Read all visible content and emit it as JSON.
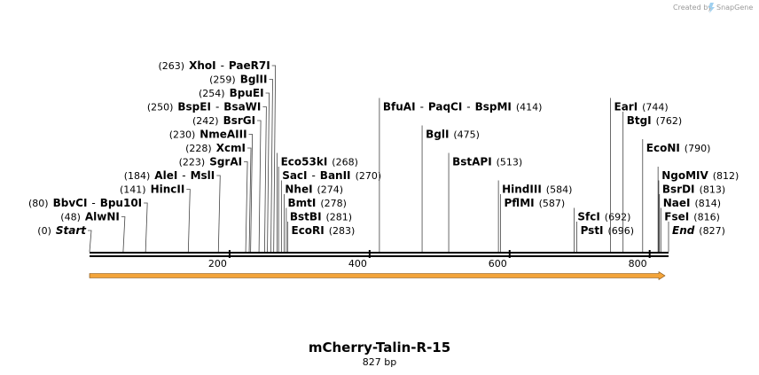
{
  "brand": {
    "created_by": "Created by",
    "name": "SnapGene"
  },
  "construct": {
    "name": "mCherry-Talin-R-15",
    "length_label": "827 bp",
    "length_bp": 827
  },
  "ruler": {
    "ticks": [
      200,
      400,
      600,
      800
    ],
    "tick_labels": [
      "200",
      "400",
      "600",
      "800"
    ]
  },
  "feature": {
    "name": "orange-arrow-feature",
    "color": "#f3a43a",
    "outline": "#7a4a10",
    "start_bp": 0,
    "end_bp": 827
  },
  "colors": {
    "line": "#000000",
    "leader": "#444444"
  },
  "sites": [
    {
      "id": "start",
      "pos": "(0)",
      "bp": 0,
      "side": "right",
      "row": 0,
      "names": [
        "Start"
      ],
      "italic": true
    },
    {
      "id": "alwni",
      "pos": "(48)",
      "bp": 48,
      "side": "right",
      "row": 1,
      "names": [
        "AlwNI"
      ]
    },
    {
      "id": "bbvci",
      "pos": "(80)",
      "bp": 80,
      "side": "right",
      "row": 2,
      "names": [
        "BbvCI",
        "Bpu10I"
      ]
    },
    {
      "id": "hincii",
      "pos": "(141)",
      "bp": 141,
      "side": "right",
      "row": 3,
      "names": [
        "HincII"
      ]
    },
    {
      "id": "alei",
      "pos": "(184)",
      "bp": 184,
      "side": "right",
      "row": 4,
      "names": [
        "AleI",
        "MslI"
      ]
    },
    {
      "id": "sgrai",
      "pos": "(223)",
      "bp": 223,
      "side": "right",
      "row": 5,
      "names": [
        "SgrAI"
      ]
    },
    {
      "id": "xcmi",
      "pos": "(228)",
      "bp": 228,
      "side": "right",
      "row": 6,
      "names": [
        "XcmI"
      ]
    },
    {
      "id": "nmeaiii",
      "pos": "(230)",
      "bp": 230,
      "side": "right",
      "row": 7,
      "names": [
        "NmeAIII"
      ]
    },
    {
      "id": "bsrgi",
      "pos": "(242)",
      "bp": 242,
      "side": "right",
      "row": 8,
      "names": [
        "BsrGI"
      ]
    },
    {
      "id": "bspei",
      "pos": "(250)",
      "bp": 250,
      "side": "right",
      "row": 9,
      "names": [
        "BspEI",
        "BsaWI"
      ]
    },
    {
      "id": "bpuei",
      "pos": "(254)",
      "bp": 254,
      "side": "right",
      "row": 10,
      "names": [
        "BpuEI"
      ]
    },
    {
      "id": "bglii",
      "pos": "(259)",
      "bp": 259,
      "side": "right",
      "row": 11,
      "names": [
        "BglII"
      ]
    },
    {
      "id": "xhoi",
      "pos": "(263)",
      "bp": 263,
      "side": "right",
      "row": 12,
      "names": [
        "XhoI",
        "PaeR7I"
      ]
    },
    {
      "id": "ecori",
      "pos": "(283)",
      "bp": 283,
      "side": "left",
      "row": 0,
      "names": [
        "EcoRI"
      ]
    },
    {
      "id": "bstbi",
      "pos": "(281)",
      "bp": 281,
      "side": "left",
      "row": 1,
      "names": [
        "BstBI"
      ]
    },
    {
      "id": "bmti",
      "pos": "(278)",
      "bp": 278,
      "side": "left",
      "row": 2,
      "names": [
        "BmtI"
      ]
    },
    {
      "id": "nhei",
      "pos": "(274)",
      "bp": 274,
      "side": "left",
      "row": 3,
      "names": [
        "NheI"
      ]
    },
    {
      "id": "saci",
      "pos": "(270)",
      "bp": 270,
      "side": "left",
      "row": 4,
      "names": [
        "SacI",
        "BanII"
      ]
    },
    {
      "id": "eco53ki",
      "pos": "(268)",
      "bp": 268,
      "side": "left",
      "row": 5,
      "names": [
        "Eco53kI"
      ]
    },
    {
      "id": "bfuai",
      "pos": "(414)",
      "bp": 414,
      "side": "left",
      "row": 9,
      "names": [
        "BfuAI",
        "PaqCI",
        "BspMI"
      ]
    },
    {
      "id": "bgli",
      "pos": "(475)",
      "bp": 475,
      "side": "left",
      "row": 7,
      "names": [
        "BglI"
      ]
    },
    {
      "id": "bstapi",
      "pos": "(513)",
      "bp": 513,
      "side": "left",
      "row": 5,
      "names": [
        "BstAPI"
      ]
    },
    {
      "id": "hindiii",
      "pos": "(584)",
      "bp": 584,
      "side": "left",
      "row": 3,
      "names": [
        "HindIII"
      ]
    },
    {
      "id": "pflmi",
      "pos": "(587)",
      "bp": 587,
      "side": "left",
      "row": 2,
      "names": [
        "PflMI"
      ]
    },
    {
      "id": "sfci",
      "pos": "(692)",
      "bp": 692,
      "side": "left",
      "row": 1,
      "names": [
        "SfcI"
      ]
    },
    {
      "id": "psti",
      "pos": "(696)",
      "bp": 696,
      "side": "left",
      "row": 0,
      "names": [
        "PstI"
      ]
    },
    {
      "id": "eari",
      "pos": "(744)",
      "bp": 744,
      "side": "left",
      "row": 9,
      "names": [
        "EarI"
      ]
    },
    {
      "id": "btgi",
      "pos": "(762)",
      "bp": 762,
      "side": "left",
      "row": 8,
      "names": [
        "BtgI"
      ]
    },
    {
      "id": "econi",
      "pos": "(790)",
      "bp": 790,
      "side": "left",
      "row": 6,
      "names": [
        "EcoNI"
      ]
    },
    {
      "id": "ngomiv",
      "pos": "(812)",
      "bp": 812,
      "side": "left",
      "row": 4,
      "names": [
        "NgoMIV"
      ]
    },
    {
      "id": "bsrdi",
      "pos": "(813)",
      "bp": 813,
      "side": "left",
      "row": 3,
      "names": [
        "BsrDI"
      ]
    },
    {
      "id": "naei",
      "pos": "(814)",
      "bp": 814,
      "side": "left",
      "row": 2,
      "names": [
        "NaeI"
      ]
    },
    {
      "id": "fsei",
      "pos": "(816)",
      "bp": 816,
      "side": "left",
      "row": 1,
      "names": [
        "FseI"
      ]
    },
    {
      "id": "end",
      "pos": "(827)",
      "bp": 827,
      "side": "left",
      "row": 0,
      "names": [
        "End"
      ],
      "italic": true
    }
  ]
}
